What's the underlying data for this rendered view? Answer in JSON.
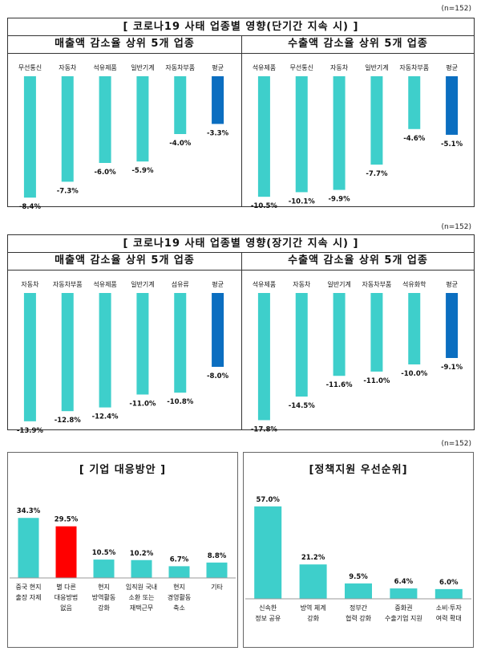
{
  "n_label": "(n=152)",
  "colors": {
    "bar": "#3ecfcb",
    "avg": "#0b6ec0",
    "highlight": "#ff0000"
  },
  "panels": [
    {
      "title": "[ 코로나19 사태 업종별 영향(단기간 지속 시) ]",
      "charts": [
        {
          "title": "매출액 감소율 상위 5개 업종",
          "chart_data": {
            "type": "bar",
            "categories": [
              "무선통신",
              "자동차",
              "석유제품",
              "일반기계",
              "자동차부품",
              "평균"
            ],
            "values": [
              -8.4,
              -7.3,
              -6.0,
              -5.9,
              -4.0,
              -3.3
            ],
            "labels": [
              "-8.4%",
              "-7.3%",
              "-6.0%",
              "-5.9%",
              "-4.0%",
              "-3.3%"
            ],
            "highlight": 5
          }
        },
        {
          "title": "수출액 감소율 상위 5개 업종",
          "chart_data": {
            "type": "bar",
            "categories": [
              "석유제품",
              "무선통신",
              "자동차",
              "일반기계",
              "자동차부품",
              "평균"
            ],
            "values": [
              -10.5,
              -10.1,
              -9.9,
              -7.7,
              -4.6,
              -5.1
            ],
            "labels": [
              "-10.5%",
              "-10.1%",
              "-9.9%",
              "-7.7%",
              "-4.6%",
              "-5.1%"
            ],
            "highlight": 5
          }
        }
      ]
    },
    {
      "title": "[ 코로나19 사태 업종별 영향(장기간 지속 시) ]",
      "charts": [
        {
          "title": "매출액 감소율 상위 5개 업종",
          "chart_data": {
            "type": "bar",
            "categories": [
              "자동차",
              "자동차부품",
              "석유제품",
              "일반기계",
              "섬유류",
              "평균"
            ],
            "values": [
              -13.9,
              -12.8,
              -12.4,
              -11.0,
              -10.8,
              -8.0
            ],
            "labels": [
              "-13.9%",
              "-12.8%",
              "-12.4%",
              "-11.0%",
              "-10.8%",
              "-8.0%"
            ],
            "highlight": 5
          }
        },
        {
          "title": "수출액 감소율 상위 5개 업종",
          "chart_data": {
            "type": "bar",
            "categories": [
              "석유제품",
              "자동차",
              "일반기계",
              "자동차부품",
              "석유화학",
              "평균"
            ],
            "values": [
              -17.8,
              -14.5,
              -11.6,
              -11.0,
              -10.0,
              -9.1
            ],
            "labels": [
              "-17.8%",
              "-14.5%",
              "-11.6%",
              "-11.0%",
              "-10.0%",
              "-9.1%"
            ],
            "highlight": 5
          }
        }
      ]
    }
  ],
  "bottom": [
    {
      "title": "[ 기업 대응방안 ]",
      "chart_data": {
        "type": "bar",
        "categories": [
          [
            "중국 현지",
            "출장 자제"
          ],
          [
            "별 다른",
            "대응방법",
            "없음"
          ],
          [
            "현지",
            "방역활동",
            "강화"
          ],
          [
            "임직원 국내",
            "소환 또는",
            "재택근무"
          ],
          [
            "현지",
            "경영활동",
            "축소"
          ],
          [
            "기타"
          ]
        ],
        "values": [
          34.3,
          29.5,
          10.5,
          10.2,
          6.7,
          8.8
        ],
        "labels": [
          "34.3%",
          "29.5%",
          "10.5%",
          "10.2%",
          "6.7%",
          "8.8%"
        ],
        "highlight": 1
      }
    },
    {
      "title": "[정책지원 우선순위]",
      "chart_data": {
        "type": "bar",
        "categories": [
          [
            "신속한",
            "정보 공유"
          ],
          [
            "방역 체계",
            "강화"
          ],
          [
            "정부간",
            "협력 강화"
          ],
          [
            "중화권",
            "수출기업 지원"
          ],
          [
            "소비·투자",
            "여력 확대"
          ]
        ],
        "values": [
          57.0,
          21.2,
          9.5,
          6.4,
          6.0
        ],
        "labels": [
          "57.0%",
          "21.2%",
          "9.5%",
          "6.4%",
          "6.0%"
        ]
      }
    }
  ]
}
